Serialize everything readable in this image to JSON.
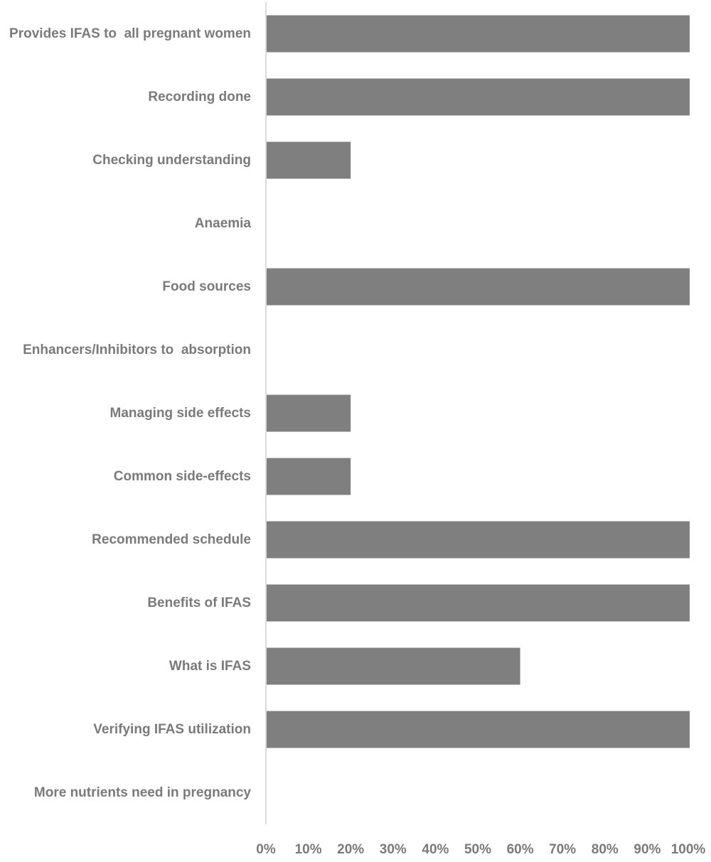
{
  "chart_data": {
    "type": "bar",
    "orientation": "horizontal",
    "categories": [
      "Provides IFAS to  all pregnant women",
      "Recording done",
      "Checking understanding",
      "Anaemia",
      "Food sources",
      "Enhancers/Inhibitors to  absorption",
      "Managing side effects",
      "Common side-effects",
      "Recommended schedule",
      "Benefits of IFAS",
      "What is IFAS",
      "Verifying IFAS utilization",
      "More nutrients need in pregnancy"
    ],
    "values": [
      100,
      100,
      20,
      0,
      100,
      0,
      20,
      20,
      100,
      100,
      60,
      100,
      0
    ],
    "xlim": [
      0,
      100
    ],
    "x_ticks": [
      "0%",
      "10%",
      "20%",
      "30%",
      "40%",
      "50%",
      "60%",
      "70%",
      "80%",
      "90%",
      "100%"
    ],
    "grid": false,
    "bar_color": "#7f7f7f",
    "axis_color": "#d0d0d0",
    "label_color": "#7a7a7a"
  }
}
